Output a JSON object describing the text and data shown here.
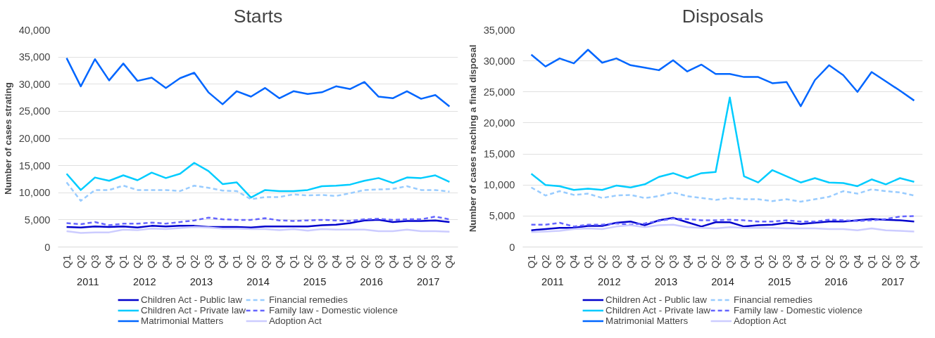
{
  "chart_data": [
    {
      "type": "line",
      "title": "Starts",
      "ylabel": "Number of cases strating",
      "categories": [
        "Q1",
        "Q2",
        "Q3",
        "Q4",
        "Q1",
        "Q2",
        "Q3",
        "Q4",
        "Q1",
        "Q2",
        "Q3",
        "Q4",
        "Q1",
        "Q2",
        "Q3",
        "Q4",
        "Q1",
        "Q2",
        "Q3",
        "Q4",
        "Q1",
        "Q2",
        "Q3",
        "Q4",
        "Q1",
        "Q2",
        "Q3",
        "Q4"
      ],
      "annotations": [
        "2011",
        "2012",
        "2013",
        "2014",
        "2015",
        "2016",
        "2017"
      ],
      "ylim": [
        0,
        40000
      ],
      "yticks": [
        0,
        {
          "value": 5000,
          "label": "5,000"
        },
        {
          "value": 10000,
          "label": "10,000"
        },
        {
          "value": 15000,
          "label": "15,000"
        },
        {
          "value": 20000,
          "label": "20,000"
        },
        {
          "value": 25000,
          "label": "25,000"
        },
        {
          "value": 30000,
          "label": "30,000"
        },
        {
          "value": 35000,
          "label": "35,000"
        },
        {
          "value": 40000,
          "label": "40,000"
        }
      ],
      "grid": "y",
      "legend": "bottom",
      "series": [
        {
          "name": "Children Act - Public law",
          "color": "#0000cc",
          "line_style": "solid",
          "values": [
            3700,
            3600,
            3800,
            3700,
            3800,
            3600,
            3900,
            3800,
            3900,
            3900,
            3700,
            3700,
            3700,
            3600,
            3800,
            3800,
            3800,
            3800,
            4000,
            4100,
            4400,
            4900,
            5000,
            4600,
            4800,
            4800,
            4900,
            4600
          ]
        },
        {
          "name": "Children Act - Private law",
          "color": "#00ccff",
          "line_style": "solid",
          "values": [
            13500,
            10500,
            12800,
            12200,
            13200,
            12300,
            13700,
            12700,
            13500,
            15500,
            14000,
            11600,
            11900,
            9100,
            10500,
            10300,
            10300,
            10500,
            11200,
            11300,
            11500,
            12200,
            12700,
            11800,
            12800,
            12700,
            13200,
            12000
          ]
        },
        {
          "name": "Matrimonial Matters",
          "color": "#0066ff",
          "line_style": "solid",
          "values": [
            34800,
            29600,
            34600,
            30700,
            33800,
            30600,
            31200,
            29300,
            31100,
            32100,
            28500,
            26300,
            28700,
            27700,
            29300,
            27400,
            28700,
            28200,
            28500,
            29600,
            29100,
            30400,
            27700,
            27400,
            28700,
            27300,
            28000,
            25900
          ]
        },
        {
          "name": "Financial remedies",
          "color": "#99ccff",
          "line_style": "dashed",
          "values": [
            11900,
            8500,
            10500,
            10500,
            11300,
            10500,
            10500,
            10500,
            10300,
            11300,
            10900,
            10400,
            10300,
            8800,
            9200,
            9200,
            9700,
            9500,
            9600,
            9400,
            9900,
            10500,
            10600,
            10700,
            11200,
            10500,
            10500,
            10200
          ]
        },
        {
          "name": "Family law - Domestic violence",
          "color": "#6666ff",
          "line_style": "dashed",
          "values": [
            4400,
            4200,
            4600,
            4000,
            4300,
            4300,
            4500,
            4300,
            4600,
            4900,
            5400,
            5100,
            5000,
            5000,
            5300,
            4900,
            4800,
            4900,
            5000,
            4900,
            4800,
            5100,
            5200,
            5000,
            5100,
            5100,
            5600,
            5100
          ]
        },
        {
          "name": "Adoption Act",
          "color": "#ccccff",
          "line_style": "solid",
          "values": [
            2900,
            2600,
            2700,
            2700,
            3200,
            3100,
            3400,
            3300,
            3500,
            3700,
            3600,
            3400,
            3400,
            3300,
            3300,
            3100,
            3300,
            3000,
            3300,
            3200,
            3200,
            3200,
            2900,
            2900,
            3200,
            2900,
            2900,
            2800
          ]
        }
      ]
    },
    {
      "type": "line",
      "title": "Disposals",
      "ylabel": "Number of cases reaching a final disposal",
      "categories": [
        "Q1",
        "Q2",
        "Q3",
        "Q4",
        "Q1",
        "Q2",
        "Q3",
        "Q4",
        "Q1",
        "Q2",
        "Q3",
        "Q4",
        "Q1",
        "Q2",
        "Q3",
        "Q4",
        "Q1",
        "Q2",
        "Q3",
        "Q4",
        "Q1",
        "Q2",
        "Q3",
        "Q4",
        "Q1",
        "Q2",
        "Q3",
        "Q4"
      ],
      "annotations": [
        "2011",
        "2012",
        "2013",
        "2014",
        "2015",
        "2016",
        "2017"
      ],
      "ylim": [
        0,
        35000
      ],
      "yticks": [
        0,
        {
          "value": 5000,
          "label": "5,000"
        },
        {
          "value": 10000,
          "label": "10,000"
        },
        {
          "value": 15000,
          "label": "15,000"
        },
        {
          "value": 20000,
          "label": "20,000"
        },
        {
          "value": 25000,
          "label": "25,000"
        },
        {
          "value": 30000,
          "label": "30,000"
        },
        {
          "value": 35000,
          "label": "35,000"
        }
      ],
      "grid": "y",
      "legend": "bottom",
      "series": [
        {
          "name": "Children Act - Public law",
          "color": "#0000cc",
          "line_style": "solid",
          "values": [
            2700,
            2900,
            3100,
            3100,
            3400,
            3400,
            3900,
            4100,
            3500,
            4300,
            4700,
            4000,
            3300,
            4000,
            4000,
            3300,
            3500,
            3600,
            3900,
            3700,
            3900,
            4100,
            4100,
            4300,
            4500,
            4400,
            4300,
            4100
          ]
        },
        {
          "name": "Children Act - Private law",
          "color": "#00ccff",
          "line_style": "solid",
          "values": [
            11800,
            10000,
            9800,
            9200,
            9400,
            9200,
            9900,
            9600,
            10100,
            11300,
            11900,
            11100,
            11900,
            12100,
            24100,
            11400,
            10400,
            12400,
            11400,
            10400,
            11100,
            10400,
            10300,
            9800,
            10900,
            10100,
            11100,
            10500
          ]
        },
        {
          "name": "Matrimonial Matters",
          "color": "#0066ff",
          "line_style": "solid",
          "values": [
            31000,
            29100,
            30400,
            29600,
            31800,
            29700,
            30400,
            29300,
            28900,
            28500,
            30100,
            28300,
            29400,
            27900,
            27900,
            27400,
            27400,
            26400,
            26600,
            22700,
            26900,
            29300,
            27700,
            25000,
            28200,
            26700,
            25200,
            23600
          ]
        },
        {
          "name": "Financial remedies",
          "color": "#99ccff",
          "line_style": "dashed",
          "values": [
            9600,
            8300,
            9000,
            8400,
            8600,
            7900,
            8300,
            8400,
            7900,
            8200,
            8800,
            8200,
            7900,
            7600,
            7900,
            7700,
            7700,
            7400,
            7700,
            7300,
            7700,
            8100,
            9000,
            8600,
            9300,
            9000,
            8800,
            8300
          ]
        },
        {
          "name": "Family law - Domestic violence",
          "color": "#6666ff",
          "line_style": "dashed",
          "values": [
            3600,
            3600,
            3900,
            3300,
            3600,
            3600,
            3800,
            3600,
            3800,
            4200,
            4600,
            4500,
            4300,
            4300,
            4400,
            4300,
            4100,
            4100,
            4300,
            4100,
            4100,
            4400,
            4300,
            4200,
            4300,
            4500,
            4900,
            5000
          ]
        },
        {
          "name": "Adoption Act",
          "color": "#ccccff",
          "line_style": "solid",
          "values": [
            2400,
            2500,
            2600,
            2900,
            3000,
            2900,
            3300,
            3500,
            3200,
            3500,
            3600,
            3200,
            3100,
            3000,
            3200,
            3100,
            3100,
            3100,
            3000,
            3000,
            3000,
            2900,
            2900,
            2700,
            3000,
            2700,
            2600,
            2500
          ]
        }
      ]
    }
  ]
}
